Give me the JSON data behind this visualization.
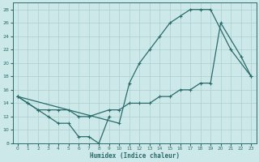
{
  "xlabel": "Humidex (Indice chaleur)",
  "bg_color": "#cde8e8",
  "grid_color": "#aacfcf",
  "line_color": "#2a6b6b",
  "xlim": [
    -0.5,
    23.5
  ],
  "ylim": [
    8,
    29
  ],
  "xticks": [
    0,
    1,
    2,
    3,
    4,
    5,
    6,
    7,
    8,
    9,
    10,
    11,
    12,
    13,
    14,
    15,
    16,
    17,
    18,
    19,
    20,
    21,
    22,
    23
  ],
  "yticks": [
    8,
    10,
    12,
    14,
    16,
    18,
    20,
    22,
    24,
    26,
    28
  ],
  "series": [
    {
      "x": [
        0,
        1,
        2,
        3,
        4,
        5,
        6,
        7,
        8,
        9
      ],
      "y": [
        15,
        14,
        13,
        12,
        11,
        11,
        9,
        9,
        8,
        12
      ],
      "linestyle": "-",
      "marker": true
    },
    {
      "x": [
        0,
        10,
        11,
        12,
        13,
        14,
        15,
        16,
        17,
        18,
        19,
        21,
        23
      ],
      "y": [
        15,
        11,
        17,
        20,
        22,
        24,
        26,
        27,
        28,
        28,
        28,
        22,
        18
      ],
      "linestyle": "-",
      "marker": true
    },
    {
      "x": [
        0,
        1,
        2,
        3,
        4,
        5,
        6,
        7,
        9,
        10,
        11,
        12,
        13,
        14,
        15,
        16,
        17,
        18,
        19,
        20,
        22,
        23
      ],
      "y": [
        15,
        14,
        13,
        13,
        13,
        13,
        12,
        12,
        13,
        13,
        14,
        14,
        14,
        15,
        15,
        16,
        16,
        17,
        17,
        26,
        21,
        18
      ],
      "linestyle": "-",
      "marker": true
    }
  ]
}
